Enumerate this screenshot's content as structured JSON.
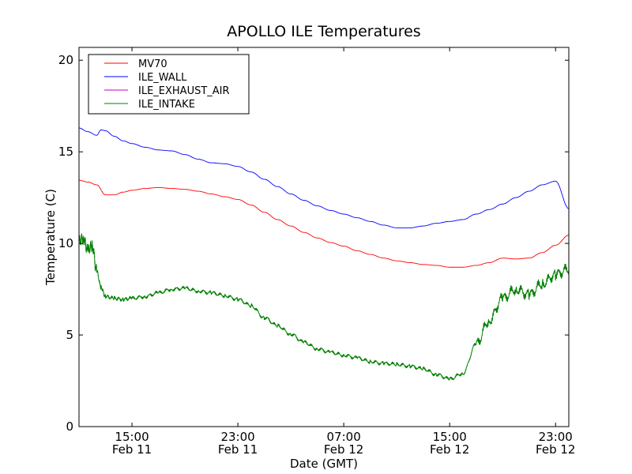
{
  "chart_data": {
    "type": "line",
    "title": "APOLLO ILE Temperatures",
    "xlabel": "Date (GMT)",
    "ylabel": "Temperature (C)",
    "xlim": [
      "2011-02-11 11:00",
      "2011-02-13 00:00"
    ],
    "ylim": [
      0,
      20.7
    ],
    "yticks": [
      0,
      5,
      10,
      15,
      20
    ],
    "xticks": [
      {
        "x": "2011-02-11 15:00",
        "time": "15:00",
        "date": "Feb 11"
      },
      {
        "x": "2011-02-11 23:00",
        "time": "23:00",
        "date": "Feb 11"
      },
      {
        "x": "2011-02-12 07:00",
        "time": "07:00",
        "date": "Feb 12"
      },
      {
        "x": "2011-02-12 15:00",
        "time": "15:00",
        "date": "Feb 12"
      },
      {
        "x": "2011-02-12 23:00",
        "time": "23:00",
        "date": "Feb 12"
      }
    ],
    "grid": false,
    "legend_position": "top-left",
    "series": [
      {
        "name": "MV70",
        "color": "#ff0000",
        "x": [
          "2011-02-11 11:00",
          "2011-02-11 11:40",
          "2011-02-11 12:20",
          "2011-02-11 13:00",
          "2011-02-11 13:40",
          "2011-02-11 14:20",
          "2011-02-11 15:00",
          "2011-02-11 16:00",
          "2011-02-11 17:00",
          "2011-02-11 18:00",
          "2011-02-11 19:00",
          "2011-02-11 20:00",
          "2011-02-11 21:00",
          "2011-02-11 22:00",
          "2011-02-11 23:00",
          "2011-02-12 00:00",
          "2011-02-12 01:00",
          "2011-02-12 02:00",
          "2011-02-12 03:00",
          "2011-02-12 04:00",
          "2011-02-12 05:00",
          "2011-02-12 06:00",
          "2011-02-12 07:00",
          "2011-02-12 08:00",
          "2011-02-12 09:00",
          "2011-02-12 10:00",
          "2011-02-12 11:00",
          "2011-02-12 12:00",
          "2011-02-12 13:00",
          "2011-02-12 14:00",
          "2011-02-12 15:00",
          "2011-02-12 16:00",
          "2011-02-12 17:00",
          "2011-02-12 18:00",
          "2011-02-12 19:00",
          "2011-02-12 20:00",
          "2011-02-12 21:00",
          "2011-02-12 22:00",
          "2011-02-12 23:00",
          "2011-02-13 00:00"
        ],
        "values": [
          13.45,
          13.35,
          13.2,
          12.65,
          12.65,
          12.8,
          12.9,
          13.0,
          13.05,
          13.0,
          12.95,
          12.85,
          12.7,
          12.55,
          12.4,
          12.1,
          11.7,
          11.3,
          10.95,
          10.6,
          10.3,
          10.05,
          9.85,
          9.6,
          9.4,
          9.2,
          9.05,
          8.95,
          8.85,
          8.8,
          8.7,
          8.7,
          8.8,
          8.95,
          9.2,
          9.15,
          9.2,
          9.5,
          9.9,
          10.45
        ]
      },
      {
        "name": "ILE_WALL",
        "color": "#0000ff",
        "x": [
          "2011-02-11 11:00",
          "2011-02-11 11:40",
          "2011-02-11 12:20",
          "2011-02-11 12:40",
          "2011-02-11 13:00",
          "2011-02-11 13:40",
          "2011-02-11 14:20",
          "2011-02-11 15:00",
          "2011-02-11 16:00",
          "2011-02-11 17:00",
          "2011-02-11 18:00",
          "2011-02-11 19:00",
          "2011-02-11 20:00",
          "2011-02-11 21:00",
          "2011-02-11 22:00",
          "2011-02-11 23:00",
          "2011-02-12 00:00",
          "2011-02-12 01:00",
          "2011-02-12 02:00",
          "2011-02-12 03:00",
          "2011-02-12 04:00",
          "2011-02-12 05:00",
          "2011-02-12 06:00",
          "2011-02-12 07:00",
          "2011-02-12 08:00",
          "2011-02-12 09:00",
          "2011-02-12 10:00",
          "2011-02-12 11:00",
          "2011-02-12 12:00",
          "2011-02-12 13:00",
          "2011-02-12 14:00",
          "2011-02-12 15:00",
          "2011-02-12 16:00",
          "2011-02-12 17:00",
          "2011-02-12 18:00",
          "2011-02-12 19:00",
          "2011-02-12 20:00",
          "2011-02-12 21:00",
          "2011-02-12 22:00",
          "2011-02-12 23:00",
          "2011-02-13 00:00"
        ],
        "values": [
          16.3,
          16.1,
          15.9,
          16.2,
          16.15,
          15.85,
          15.6,
          15.45,
          15.25,
          15.1,
          15.05,
          14.85,
          14.6,
          14.4,
          14.35,
          14.2,
          13.9,
          13.5,
          13.1,
          12.7,
          12.35,
          12.05,
          11.8,
          11.6,
          11.4,
          11.2,
          11.0,
          10.85,
          10.85,
          10.95,
          11.1,
          11.2,
          11.3,
          11.6,
          11.85,
          12.15,
          12.5,
          12.85,
          13.2,
          13.4,
          11.9
        ]
      },
      {
        "name": "ILE_EXHAUST_AIR",
        "color": "#bf00bf",
        "x": [],
        "values": []
      },
      {
        "name": "ILE_INTAKE",
        "color": "#008000",
        "x": [
          "2011-02-11 11:00",
          "2011-02-11 11:20",
          "2011-02-11 11:40",
          "2011-02-11 12:00",
          "2011-02-11 12:20",
          "2011-02-11 12:40",
          "2011-02-11 13:00",
          "2011-02-11 13:40",
          "2011-02-11 14:20",
          "2011-02-11 15:00",
          "2011-02-11 16:00",
          "2011-02-11 17:00",
          "2011-02-11 18:00",
          "2011-02-11 19:00",
          "2011-02-11 20:00",
          "2011-02-11 21:00",
          "2011-02-11 22:00",
          "2011-02-11 23:00",
          "2011-02-12 00:00",
          "2011-02-12 01:00",
          "2011-02-12 02:00",
          "2011-02-12 03:00",
          "2011-02-12 04:00",
          "2011-02-12 05:00",
          "2011-02-12 06:00",
          "2011-02-12 07:00",
          "2011-02-12 08:00",
          "2011-02-12 09:00",
          "2011-02-12 10:00",
          "2011-02-12 11:00",
          "2011-02-12 12:00",
          "2011-02-12 13:00",
          "2011-02-12 14:00",
          "2011-02-12 15:00",
          "2011-02-12 16:00",
          "2011-02-12 17:00",
          "2011-02-12 18:00",
          "2011-02-12 19:00",
          "2011-02-12 20:00",
          "2011-02-12 21:00",
          "2011-02-12 22:00",
          "2011-02-12 23:00",
          "2011-02-13 00:00"
        ],
        "values": [
          10.1,
          10.3,
          9.6,
          9.9,
          8.5,
          7.6,
          7.1,
          7.0,
          6.95,
          7.0,
          7.1,
          7.3,
          7.5,
          7.55,
          7.4,
          7.3,
          7.15,
          6.95,
          6.6,
          5.95,
          5.5,
          5.05,
          4.6,
          4.25,
          4.05,
          3.9,
          3.75,
          3.55,
          3.45,
          3.4,
          3.3,
          3.15,
          2.85,
          2.6,
          2.9,
          4.5,
          5.8,
          7.0,
          7.5,
          7.2,
          7.8,
          8.3,
          8.6
        ]
      }
    ]
  }
}
